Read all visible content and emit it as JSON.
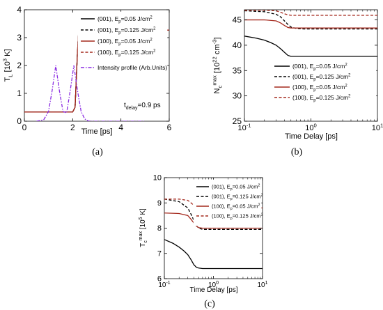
{
  "figure": {
    "panel_labels": [
      "(a)",
      "(b)",
      "(c)"
    ]
  },
  "chart_data": [
    {
      "panel": "a",
      "type": "line",
      "xlabel": "Time  [ps]",
      "ylabel_main": "T",
      "ylabel_sub": "L",
      "ylabel_rest": " [10",
      "ylabel_exp": "3",
      "ylabel_end": " K]",
      "xlim": [
        0,
        6
      ],
      "ylim": [
        0,
        4
      ],
      "xticks": [
        0,
        2,
        4,
        6
      ],
      "yticks": [
        0,
        1,
        2,
        3,
        4
      ],
      "grid": false,
      "legend_position": "top-right",
      "annotation": {
        "main": "t",
        "sub": "delay",
        "rest": "=0.9 ps"
      },
      "series": [
        {
          "name": "(001), E =0.05 J/cm ",
          "legend_main": "(001), E",
          "legend_sub": "p",
          "legend_rest": "=0.05 J/cm",
          "legend_sup": "2",
          "color": "#000000",
          "dash": "solid",
          "x": [
            0,
            2.0,
            2.1,
            2.2,
            2.25,
            6
          ],
          "y": [
            0.33,
            0.33,
            0.5,
            2.5,
            3.27,
            3.27
          ]
        },
        {
          "name": "(001), E =0.125 J/cm ",
          "legend_main": "(001), E",
          "legend_sub": "p",
          "legend_rest": "=0.125 J/cm",
          "legend_sup": "2",
          "color": "#000000",
          "dash": "dashed",
          "x": [
            0,
            2.0,
            2.1,
            2.2,
            2.25,
            6
          ],
          "y": [
            0.33,
            0.33,
            0.5,
            2.5,
            3.27,
            3.27
          ]
        },
        {
          "name": "(100), E =0.05 J/cm ",
          "legend_main": "(100), E",
          "legend_sub": "p",
          "legend_rest": "=0.05 J/cm",
          "legend_sup": "2",
          "color": "#a4281c",
          "dash": "solid",
          "x": [
            0,
            2.0,
            2.1,
            2.2,
            2.25,
            6
          ],
          "y": [
            0.33,
            0.33,
            0.5,
            2.5,
            3.27,
            3.27
          ]
        },
        {
          "name": "(100), E =0.125 J/cm ",
          "legend_main": "(100), E",
          "legend_sub": "p",
          "legend_rest": "=0.125 J/cm",
          "legend_sup": "2",
          "color": "#a4281c",
          "dash": "dashed",
          "x": [
            0,
            2.0,
            2.1,
            2.2,
            2.25,
            6
          ],
          "y": [
            0.33,
            0.33,
            0.5,
            2.5,
            3.27,
            3.27
          ]
        },
        {
          "name": "Intensity profile (Arb.Units)",
          "legend_main": "Intensity profile (Arb.Units)",
          "legend_sub": "",
          "legend_rest": "",
          "legend_sup": "",
          "color": "#8a2be2",
          "dash": "dashdot",
          "x": [
            0.5,
            0.8,
            1.0,
            1.15,
            1.3,
            1.45,
            1.6,
            1.75,
            1.9,
            2.05,
            2.2,
            2.35,
            2.5,
            2.65,
            2.8,
            3.0,
            3.3,
            5
          ],
          "y": [
            0,
            0.05,
            0.35,
            1.1,
            2.0,
            1.1,
            0.35,
            0.3,
            1.1,
            2.0,
            1.1,
            0.35,
            0.08,
            0.01,
            0,
            0,
            0,
            0
          ]
        }
      ]
    },
    {
      "panel": "b",
      "type": "line",
      "xlabel": "Time Delay [ps]",
      "ylabel_main": "N",
      "ylabel_sub": "c",
      "ylabel_sup": "max",
      "ylabel_rest": " [10",
      "ylabel_exp": "22",
      "ylabel_end": " cm",
      "ylabel_exp2": "-3",
      "ylabel_close": "]",
      "xscale": "log",
      "xlim": [
        0.1,
        10
      ],
      "ylim": [
        25,
        47
      ],
      "xticks": [
        0.1,
        1,
        10
      ],
      "xtick_labels": [
        {
          "base": "10",
          "exp": "-1"
        },
        {
          "base": "10",
          "exp": "0"
        },
        {
          "base": "10",
          "exp": "1"
        }
      ],
      "yticks": [
        25,
        30,
        35,
        40,
        45
      ],
      "grid": false,
      "legend_position": "center-right",
      "series": [
        {
          "name": "(001), E =0.05 J/cm ",
          "legend_main": "(001), E",
          "legend_sub": "p",
          "legend_rest": "=0.05 J/cm",
          "legend_sup": "2",
          "color": "#000000",
          "dash": "solid",
          "x": [
            0.1,
            0.15,
            0.2,
            0.25,
            0.3,
            0.35,
            0.4,
            0.45,
            0.5,
            0.6,
            1,
            10
          ],
          "y": [
            41.8,
            41.4,
            41.0,
            40.5,
            40.0,
            39.3,
            38.6,
            38.0,
            37.8,
            37.8,
            37.8,
            37.8
          ]
        },
        {
          "name": "(001), E =0.125 J/cm ",
          "legend_main": "(001), E",
          "legend_sub": "p",
          "legend_rest": "=0.125 J/cm",
          "legend_sup": "2",
          "color": "#000000",
          "dash": "dashed",
          "x": [
            0.1,
            0.2,
            0.3,
            0.35,
            0.4,
            0.45,
            0.5,
            0.6,
            0.8,
            1,
            10
          ],
          "y": [
            46.8,
            46.6,
            46.1,
            45.6,
            44.8,
            44.1,
            43.6,
            43.3,
            43.2,
            43.2,
            43.2
          ]
        },
        {
          "name": "(100), E =0.05 J/cm ",
          "legend_main": "(100), E",
          "legend_sub": "p",
          "legend_rest": "=0.05 J/cm",
          "legend_sup": "2",
          "color": "#a4281c",
          "dash": "solid",
          "x": [
            0.1,
            0.2,
            0.3,
            0.35,
            0.4,
            0.45,
            0.5,
            0.6,
            1,
            10
          ],
          "y": [
            45.0,
            45.0,
            44.8,
            44.4,
            43.9,
            43.5,
            43.4,
            43.4,
            43.4,
            43.4
          ]
        },
        {
          "name": "(100), E =0.125 J/cm ",
          "legend_main": "(100), E",
          "legend_sub": "p",
          "legend_rest": "=0.125 J/cm",
          "legend_sup": "2",
          "color": "#a4281c",
          "dash": "dashed",
          "x": [
            0.1,
            0.2,
            0.3,
            0.35,
            0.4,
            0.45,
            0.5,
            0.6,
            1,
            10
          ],
          "y": [
            46.9,
            46.9,
            46.8,
            46.5,
            46.2,
            46.0,
            45.9,
            45.9,
            45.9,
            45.9
          ]
        }
      ]
    },
    {
      "panel": "c",
      "type": "line",
      "xlabel": "Time Delay [ps]",
      "ylabel_main": "T",
      "ylabel_sub": "c",
      "ylabel_sup": "max",
      "ylabel_rest": " [10",
      "ylabel_exp": "5",
      "ylabel_end": " K]",
      "xscale": "log",
      "xlim": [
        0.1,
        10
      ],
      "ylim": [
        6,
        10
      ],
      "xticks": [
        0.1,
        1,
        10
      ],
      "xtick_labels": [
        {
          "base": "10",
          "exp": "-1"
        },
        {
          "base": "10",
          "exp": "0"
        },
        {
          "base": "10",
          "exp": "1"
        }
      ],
      "yticks": [
        6,
        7,
        8,
        9,
        10
      ],
      "grid": false,
      "legend_position": "top-right",
      "series": [
        {
          "name": "(001), E =0.05 J/cm ",
          "legend_main": "(001), E",
          "legend_sub": "p",
          "legend_rest": "=0.05 J/cm",
          "legend_sup": "2",
          "color": "#000000",
          "dash": "solid",
          "x": [
            0.1,
            0.15,
            0.2,
            0.25,
            0.3,
            0.35,
            0.4,
            0.45,
            0.5,
            0.6,
            1,
            10
          ],
          "y": [
            7.55,
            7.4,
            7.25,
            7.1,
            6.95,
            6.75,
            6.55,
            6.45,
            6.42,
            6.4,
            6.4,
            6.4
          ]
        },
        {
          "name": "(001), E =0.125 J/cm ",
          "legend_main": "(001), E",
          "legend_sub": "p",
          "legend_rest": "=0.125 J/cm",
          "legend_sup": "2",
          "color": "#000000",
          "dash": "dashed",
          "x": [
            0.1,
            0.2,
            0.3,
            0.35,
            0.4,
            0.45,
            0.5,
            0.6,
            0.8,
            1,
            10
          ],
          "y": [
            9.15,
            9.05,
            8.8,
            8.55,
            8.3,
            8.1,
            8.0,
            7.95,
            7.95,
            7.95,
            7.95
          ]
        },
        {
          "name": "(100), E =0.05 J/cm ",
          "legend_main": "(100), E",
          "legend_sub": "p",
          "legend_rest": "=0.05 J/cm",
          "legend_sup": "2",
          "color": "#a4281c",
          "dash": "solid",
          "x": [
            0.1,
            0.2,
            0.3,
            0.35,
            0.4,
            0.45,
            0.5,
            0.6,
            1,
            10
          ],
          "y": [
            8.6,
            8.58,
            8.5,
            8.35,
            8.2,
            8.08,
            8.02,
            8.0,
            8.0,
            8.0
          ]
        },
        {
          "name": "(100), E =0.125 J/cm ",
          "legend_main": "(100), E",
          "legend_sub": "p",
          "legend_rest": "=0.125 J/cm",
          "legend_sup": "2",
          "color": "#a4281c",
          "dash": "dashed",
          "x": [
            0.1,
            0.2,
            0.3,
            0.35,
            0.4,
            0.45,
            0.5,
            0.6,
            1,
            10
          ],
          "y": [
            9.15,
            9.15,
            9.1,
            9.0,
            8.9,
            8.82,
            8.8,
            8.8,
            8.8,
            8.8
          ]
        }
      ]
    }
  ]
}
